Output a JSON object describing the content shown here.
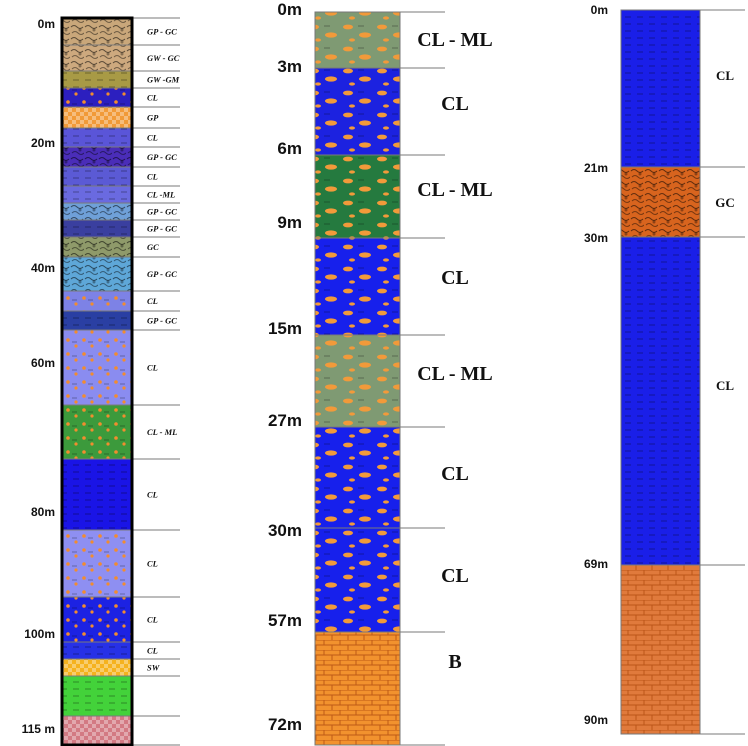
{
  "logs": [
    {
      "depth_labels": [
        "0m",
        "20m",
        "40m",
        "60m",
        "80m",
        "100m",
        "115 m"
      ],
      "layers": [
        {
          "label": "GP - GC",
          "color": "#c9a77a",
          "pattern": "gravel"
        },
        {
          "label": "GW - GC",
          "color": "#cda97e",
          "pattern": "gravel"
        },
        {
          "label": "GW -GM",
          "color": "#a89a45",
          "pattern": "dash"
        },
        {
          "label": "CL",
          "color": "#2c1fbf",
          "pattern": "dots"
        },
        {
          "label": "GP",
          "color": "#f19a38",
          "pattern": "check"
        },
        {
          "label": "CL",
          "color": "#5a55d8",
          "pattern": "dash"
        },
        {
          "label": "GP - GC",
          "color": "#4a2db8",
          "pattern": "gravel"
        },
        {
          "label": "CL",
          "color": "#5b5ad5",
          "pattern": "dash"
        },
        {
          "label": "CL -ML",
          "color": "#6a6ae0",
          "pattern": "dash"
        },
        {
          "label": "GP - GC",
          "color": "#6fa0d8",
          "pattern": "gravel"
        },
        {
          "label": "GP - GC",
          "color": "#3a3f9f",
          "pattern": "dash"
        },
        {
          "label": "GC",
          "color": "#8f9a6a",
          "pattern": "gravel"
        },
        {
          "label": "GP - GC",
          "color": "#5ea7d8",
          "pattern": "gravel"
        },
        {
          "label": "CL",
          "color": "#7d82e6",
          "pattern": "dots"
        },
        {
          "label": "GP - GC",
          "color": "#2a3fa3",
          "pattern": "dash"
        },
        {
          "label": "CL",
          "color": "#8a8cf0",
          "pattern": "dots"
        },
        {
          "label": "CL - ML",
          "color": "#3c9a3c",
          "pattern": "dots"
        },
        {
          "label": "CL",
          "color": "#1a14e6",
          "pattern": "dash"
        },
        {
          "label": "CL",
          "color": "#8e8ff2",
          "pattern": "dots"
        },
        {
          "label": "CL",
          "color": "#1c22e3",
          "pattern": "dots"
        },
        {
          "label": "CL",
          "color": "#2731e6",
          "pattern": "dash"
        },
        {
          "label": "SW",
          "color": "#f5b21e",
          "pattern": "check"
        },
        {
          "label": "",
          "color": "#43d23a",
          "pattern": "dash"
        },
        {
          "label": "",
          "color": "#d37a83",
          "pattern": "check"
        }
      ]
    },
    {
      "depth_labels": [
        "0m",
        "3m",
        "6m",
        "9m",
        "15m",
        "27m",
        "30m",
        "57m",
        "72m"
      ],
      "layers": [
        {
          "label": "CL - ML",
          "color": "#7f9a73",
          "pattern": "blob"
        },
        {
          "label": "CL",
          "color": "#1c22e0",
          "pattern": "blob"
        },
        {
          "label": "CL - ML",
          "color": "#257a3f",
          "pattern": "blob"
        },
        {
          "label": "CL",
          "color": "#1720ec",
          "pattern": "blob"
        },
        {
          "label": "CL - ML",
          "color": "#7f9a73",
          "pattern": "blob"
        },
        {
          "label": "CL",
          "color": "#1720ec",
          "pattern": "blob"
        },
        {
          "label": "CL",
          "color": "#1720ec",
          "pattern": "blob"
        },
        {
          "label": "B",
          "color": "#f2922e",
          "pattern": "brick"
        }
      ]
    },
    {
      "depth_labels": [
        "0m",
        "21m",
        "30m",
        "69m",
        "90m"
      ],
      "layers": [
        {
          "label": "CL",
          "color": "#1a1fe8",
          "pattern": "dash"
        },
        {
          "label": "GC",
          "color": "#d8641e",
          "pattern": "gravel"
        },
        {
          "label": "CL",
          "color": "#1a1fe8",
          "pattern": "dash"
        },
        {
          "label": "",
          "color": "#e07a3c",
          "pattern": "brick"
        }
      ]
    }
  ]
}
